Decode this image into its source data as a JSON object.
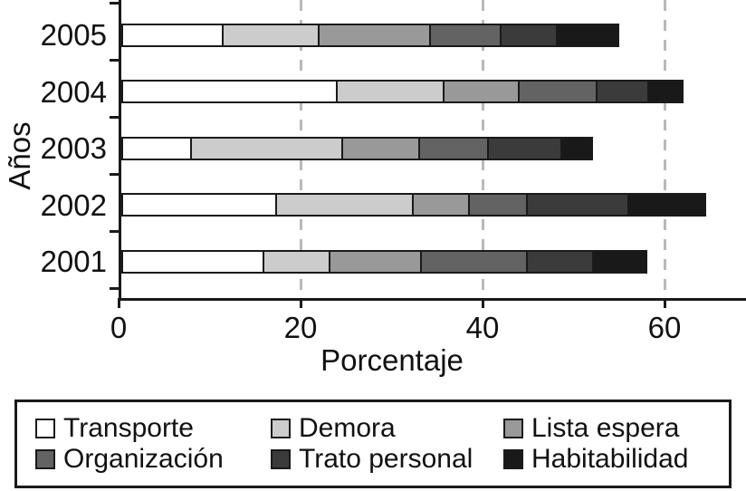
{
  "axes": {
    "x_label": "Porcentaje",
    "y_label": "Años"
  },
  "chart_data": {
    "type": "bar",
    "orientation": "horizontal",
    "stacked": true,
    "title": "",
    "xlabel": "Porcentaje",
    "ylabel": "Años",
    "categories": [
      "2005",
      "2004",
      "2003",
      "2002",
      "2001"
    ],
    "x_ticks": [
      0,
      20,
      40,
      60
    ],
    "xlim": [
      0,
      69
    ],
    "grid": "vertical dashed at 20, 40, 60",
    "legend_position": "bottom",
    "series": [
      {
        "name": "Transporte",
        "color": "#ffffff",
        "values": [
          11.2,
          23.8,
          7.8,
          17.1,
          15.7
        ]
      },
      {
        "name": "Demora",
        "color": "#cccccc",
        "values": [
          10.8,
          11.9,
          16.8,
          15.2,
          7.5
        ]
      },
      {
        "name": "Lista espera",
        "color": "#999999",
        "values": [
          12.4,
          8.5,
          8.6,
          6.4,
          10.2
        ]
      },
      {
        "name": "Organización",
        "color": "#636363",
        "values": [
          8.0,
          8.7,
          7.8,
          6.6,
          11.9
        ]
      },
      {
        "name": "Trato personal",
        "color": "#3b3b3b",
        "values": [
          6.4,
          5.9,
          8.3,
          11.3,
          7.4
        ]
      },
      {
        "name": "Habitabilidad",
        "color": "#191919",
        "values": [
          6.9,
          4.0,
          3.5,
          8.7,
          6.1
        ]
      }
    ],
    "totals": [
      55.7,
      62.8,
      52.8,
      65.3,
      58.8
    ]
  },
  "legend": {
    "items": [
      {
        "label": "Transporte",
        "color": "#ffffff"
      },
      {
        "label": "Demora",
        "color": "#cccccc"
      },
      {
        "label": "Lista espera",
        "color": "#999999"
      },
      {
        "label": "Organización",
        "color": "#636363"
      },
      {
        "label": "Trato personal",
        "color": "#3b3b3b"
      },
      {
        "label": "Habitabilidad",
        "color": "#191919"
      }
    ]
  },
  "style": {
    "axis_color": "#1a1a1a",
    "gridline_color": "#b9b9b9",
    "segment_border_color": "#1a1a1a"
  }
}
